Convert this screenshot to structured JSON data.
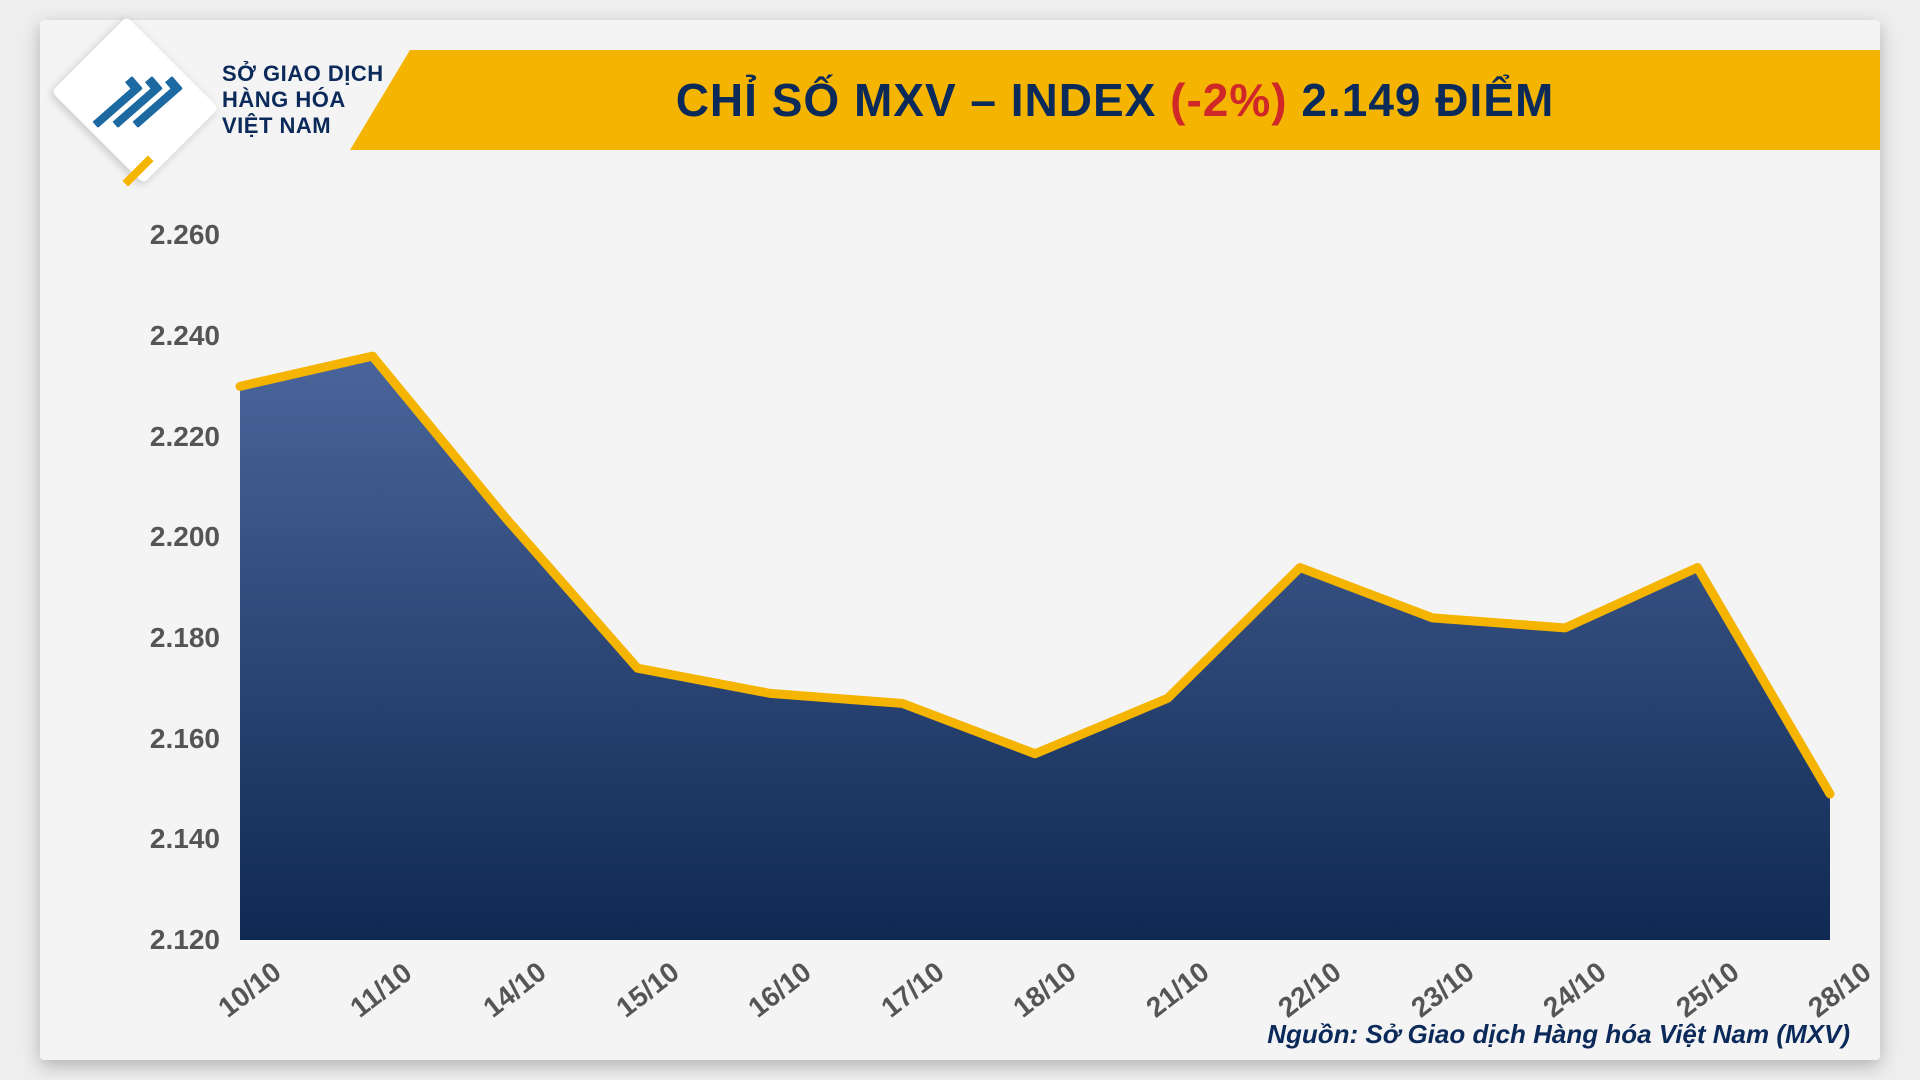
{
  "brand": {
    "line1": "SỞ GIAO DỊCH",
    "line2": "HÀNG HÓA",
    "line3": "VIỆT NAM",
    "logo_color": "#1d6aa3",
    "accent_color": "#f4b400"
  },
  "header": {
    "prefix": "CHỈ SỐ MXV – INDEX ",
    "change": "(-2%)",
    "suffix": " 2.149 ĐIỂM",
    "banner_bg": "#f4b400",
    "title_color": "#0b2a5a",
    "change_color": "#d02828"
  },
  "chart": {
    "type": "area",
    "categories": [
      "10/10",
      "11/10",
      "14/10",
      "15/10",
      "16/10",
      "17/10",
      "18/10",
      "21/10",
      "22/10",
      "23/10",
      "24/10",
      "25/10",
      "28/10"
    ],
    "values": [
      2230,
      2236,
      2204,
      2174,
      2169,
      2167,
      2157,
      2168,
      2194,
      2184,
      2182,
      2194,
      2149
    ],
    "ylim": [
      2120,
      2270
    ],
    "ytick_step": 20,
    "ytick_labels": [
      "2.120",
      "2.140",
      "2.160",
      "2.180",
      "2.200",
      "2.220",
      "2.240",
      "2.260"
    ],
    "line_color": "#f4b400",
    "line_width": 9,
    "area_gradient_top": "#4a659a",
    "area_gradient_bottom": "#0f2953",
    "axis_label_color": "#555555",
    "axis_label_fontsize": 28,
    "x_label_rotation_deg": -38,
    "background_color": "#f4f4f4"
  },
  "source": "Nguồn: Sở Giao dịch Hàng hóa Việt Nam (MXV)"
}
